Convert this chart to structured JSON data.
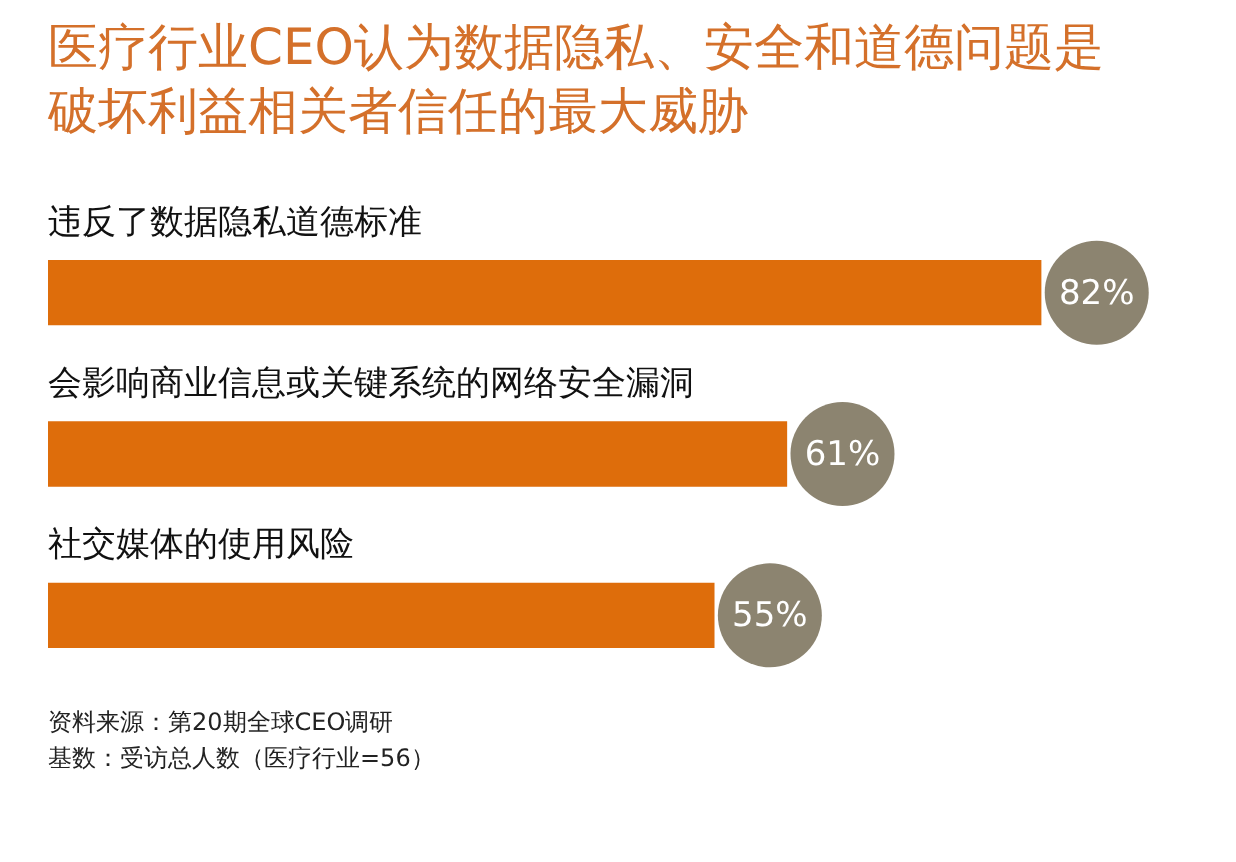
{
  "chart_data": {
    "type": "bar",
    "orientation": "horizontal",
    "title": "医疗行业CEO认为数据隐私、安全和道德问题是破坏利益相关者信任的最大威胁",
    "categories": [
      "违反了数据隐私道德标准",
      "会影响商业信息或关键系统的网络安全漏洞",
      "社交媒体的使用风险"
    ],
    "values": [
      82,
      61,
      55
    ],
    "color": "#de6d0b",
    "value_labels": [
      "82%",
      "61%",
      "55%"
    ],
    "annotations": [
      "资料来源：第20期全球CEO调研",
      "基数：受访总人数（医疗行业=56）"
    ],
    "legend": false
  }
}
